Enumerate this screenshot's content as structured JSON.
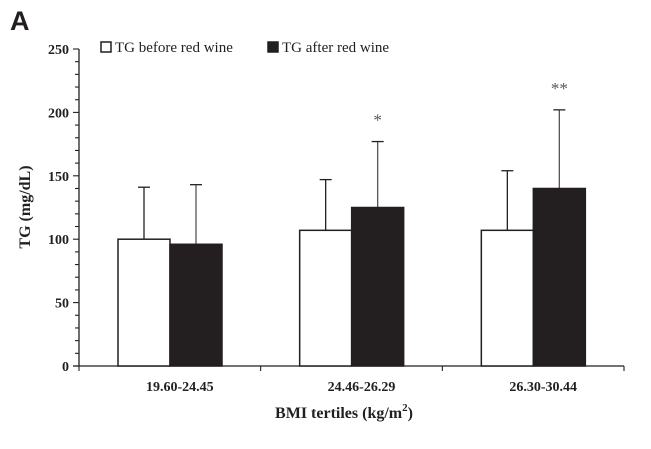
{
  "panel_label": "A",
  "chart_data": {
    "type": "bar",
    "title": "",
    "xlabel": "BMI tertiles (kg/m",
    "xlabel_superscript": "2",
    "xlabel_suffix": ")",
    "ylabel": "TG (mg/dL)",
    "ylim": [
      0,
      250
    ],
    "yticks": [
      0,
      50,
      100,
      150,
      200,
      250
    ],
    "y_minor_tick_step": 10,
    "grid": false,
    "legend_position": "top-left",
    "categories": [
      "19.60-24.45",
      "24.46-26.29",
      "26.30-30.44"
    ],
    "series": [
      {
        "name": "TG before red wine",
        "fill": "#ffffff",
        "values": [
          100,
          107,
          107
        ],
        "error_upper": [
          141,
          147,
          154
        ]
      },
      {
        "name": "TG after red wine",
        "fill": "#231f20",
        "values": [
          96,
          125,
          140
        ],
        "error_upper": [
          143,
          177,
          202
        ]
      }
    ],
    "annotations": [
      {
        "category": "24.46-26.29",
        "series": "TG after red wine",
        "text": "*"
      },
      {
        "category": "26.30-30.44",
        "series": "TG after red wine",
        "text": "**"
      }
    ]
  }
}
